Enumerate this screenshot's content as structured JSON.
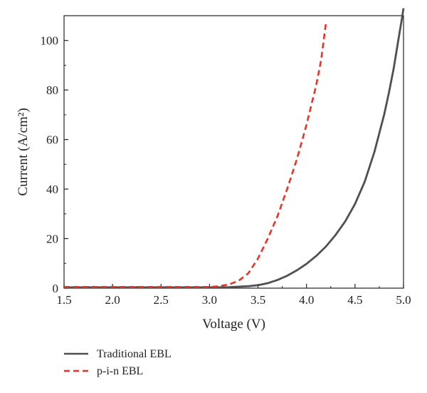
{
  "chart_data": {
    "type": "line",
    "title": "",
    "xlabel": "Voltage (V)",
    "ylabel": "Current (A/cm²)",
    "xlim": [
      1.5,
      5.0
    ],
    "ylim": [
      0,
      110
    ],
    "x_ticks": [
      "1.5",
      "2.0",
      "2.5",
      "3.0",
      "3.5",
      "4.0",
      "4.5",
      "5.0"
    ],
    "y_ticks": [
      "0",
      "20",
      "40",
      "60",
      "80",
      "100"
    ],
    "grid": false,
    "legend_position": "bottom-left, below plot",
    "series": [
      {
        "name": "Traditional EBL",
        "color": "#505050",
        "dash": "solid",
        "x": [
          1.5,
          2.0,
          2.5,
          3.0,
          3.2,
          3.4,
          3.5,
          3.6,
          3.7,
          3.8,
          3.9,
          4.0,
          4.1,
          4.2,
          4.3,
          4.4,
          4.5,
          4.6,
          4.7,
          4.8,
          4.85,
          4.9,
          4.95,
          4.98,
          5.0
        ],
        "y": [
          0.3,
          0.3,
          0.3,
          0.3,
          0.4,
          0.8,
          1.2,
          2.0,
          3.3,
          5.0,
          7.2,
          9.8,
          13.0,
          16.8,
          21.5,
          27.0,
          34.0,
          43.0,
          55.0,
          70.0,
          79.0,
          89.0,
          101.0,
          108.0,
          113.0
        ]
      },
      {
        "name": "p-i-n EBL",
        "color": "#e8332a",
        "dash": "dashed",
        "x": [
          1.5,
          2.0,
          2.5,
          3.0,
          3.1,
          3.2,
          3.3,
          3.4,
          3.5,
          3.6,
          3.7,
          3.8,
          3.9,
          4.0,
          4.1,
          4.15,
          4.2
        ],
        "y": [
          0.5,
          0.5,
          0.5,
          0.5,
          0.8,
          1.5,
          3.0,
          6.0,
          12.0,
          20.0,
          29.0,
          40.0,
          52.0,
          66.0,
          82.0,
          92.0,
          107.0
        ]
      }
    ]
  }
}
